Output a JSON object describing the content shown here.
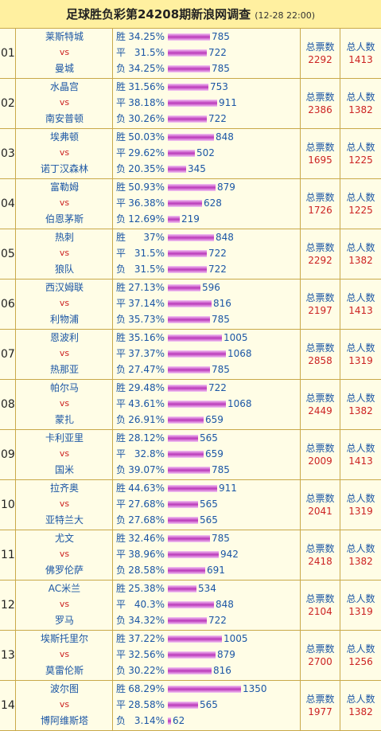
{
  "header": {
    "title": "足球胜负彩第24208期新浪网调查",
    "date": "(12-28 22:00)"
  },
  "labels": {
    "vs": "vs",
    "win": "胜",
    "draw": "平",
    "lose": "负",
    "total_votes": "总票数",
    "total_people": "总人数"
  },
  "matches": [
    {
      "num": "01",
      "home": "莱斯特城",
      "away": "曼城",
      "win_pct": "34.25%",
      "win_cnt": 785,
      "draw_pct": "31.5%",
      "draw_cnt": 722,
      "lose_pct": "34.25%",
      "lose_cnt": 785,
      "votes": "2292",
      "people": "1413"
    },
    {
      "num": "02",
      "home": "水晶宫",
      "away": "南安普顿",
      "win_pct": "31.56%",
      "win_cnt": 753,
      "draw_pct": "38.18%",
      "draw_cnt": 911,
      "lose_pct": "30.26%",
      "lose_cnt": 722,
      "votes": "2386",
      "people": "1382"
    },
    {
      "num": "03",
      "home": "埃弗顿",
      "away": "诺丁汉森林",
      "win_pct": "50.03%",
      "win_cnt": 848,
      "draw_pct": "29.62%",
      "draw_cnt": 502,
      "lose_pct": "20.35%",
      "lose_cnt": 345,
      "votes": "1695",
      "people": "1225"
    },
    {
      "num": "04",
      "home": "富勒姆",
      "away": "伯恩茅斯",
      "win_pct": "50.93%",
      "win_cnt": 879,
      "draw_pct": "36.38%",
      "draw_cnt": 628,
      "lose_pct": "12.69%",
      "lose_cnt": 219,
      "votes": "1726",
      "people": "1225"
    },
    {
      "num": "05",
      "home": "热刺",
      "away": "狼队",
      "win_pct": "37%",
      "win_cnt": 848,
      "draw_pct": "31.5%",
      "draw_cnt": 722,
      "lose_pct": "31.5%",
      "lose_cnt": 722,
      "votes": "2292",
      "people": "1382"
    },
    {
      "num": "06",
      "home": "西汉姆联",
      "away": "利物浦",
      "win_pct": "27.13%",
      "win_cnt": 596,
      "draw_pct": "37.14%",
      "draw_cnt": 816,
      "lose_pct": "35.73%",
      "lose_cnt": 785,
      "votes": "2197",
      "people": "1413"
    },
    {
      "num": "07",
      "home": "恩波利",
      "away": "热那亚",
      "win_pct": "35.16%",
      "win_cnt": 1005,
      "draw_pct": "37.37%",
      "draw_cnt": 1068,
      "lose_pct": "27.47%",
      "lose_cnt": 785,
      "votes": "2858",
      "people": "1319"
    },
    {
      "num": "08",
      "home": "帕尔马",
      "away": "蒙扎",
      "win_pct": "29.48%",
      "win_cnt": 722,
      "draw_pct": "43.61%",
      "draw_cnt": 1068,
      "lose_pct": "26.91%",
      "lose_cnt": 659,
      "votes": "2449",
      "people": "1382"
    },
    {
      "num": "09",
      "home": "卡利亚里",
      "away": "国米",
      "win_pct": "28.12%",
      "win_cnt": 565,
      "draw_pct": "32.8%",
      "draw_cnt": 659,
      "lose_pct": "39.07%",
      "lose_cnt": 785,
      "votes": "2009",
      "people": "1413"
    },
    {
      "num": "10",
      "home": "拉齐奥",
      "away": "亚特兰大",
      "win_pct": "44.63%",
      "win_cnt": 911,
      "draw_pct": "27.68%",
      "draw_cnt": 565,
      "lose_pct": "27.68%",
      "lose_cnt": 565,
      "votes": "2041",
      "people": "1319"
    },
    {
      "num": "11",
      "home": "尤文",
      "away": "佛罗伦萨",
      "win_pct": "32.46%",
      "win_cnt": 785,
      "draw_pct": "38.96%",
      "draw_cnt": 942,
      "lose_pct": "28.58%",
      "lose_cnt": 691,
      "votes": "2418",
      "people": "1382"
    },
    {
      "num": "12",
      "home": "AC米兰",
      "away": "罗马",
      "win_pct": "25.38%",
      "win_cnt": 534,
      "draw_pct": "40.3%",
      "draw_cnt": 848,
      "lose_pct": "34.32%",
      "lose_cnt": 722,
      "votes": "2104",
      "people": "1319"
    },
    {
      "num": "13",
      "home": "埃斯托里尔",
      "away": "莫雷伦斯",
      "win_pct": "37.22%",
      "win_cnt": 1005,
      "draw_pct": "32.56%",
      "draw_cnt": 879,
      "lose_pct": "30.22%",
      "lose_cnt": 816,
      "votes": "2700",
      "people": "1256"
    },
    {
      "num": "14",
      "home": "波尔图",
      "away": "博阿维斯塔",
      "win_pct": "68.29%",
      "win_cnt": 1350,
      "draw_pct": "28.58%",
      "draw_cnt": 565,
      "lose_pct": "3.14%",
      "lose_cnt": 62,
      "votes": "1977",
      "people": "1382"
    }
  ]
}
